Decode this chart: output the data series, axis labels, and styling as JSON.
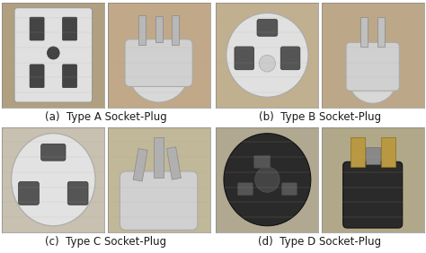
{
  "captions": [
    "(a)  Type A Socket-Plug",
    "(b)  Type B Socket-Plug",
    "(c)  Type C Socket-Plug",
    "(d)  Type D Socket-Plug"
  ],
  "background_color": "#ffffff",
  "caption_fontsize": 8.5,
  "figure_width": 4.74,
  "figure_height": 2.82,
  "dpi": 100,
  "caption_color": "#1a1a1a",
  "wood_bg": "#c8b898",
  "wood_bg2": "#c0b090",
  "white_plug": "#e8e8e8",
  "dark_plug": "#282828",
  "gray_plug": "#a0a0a0"
}
